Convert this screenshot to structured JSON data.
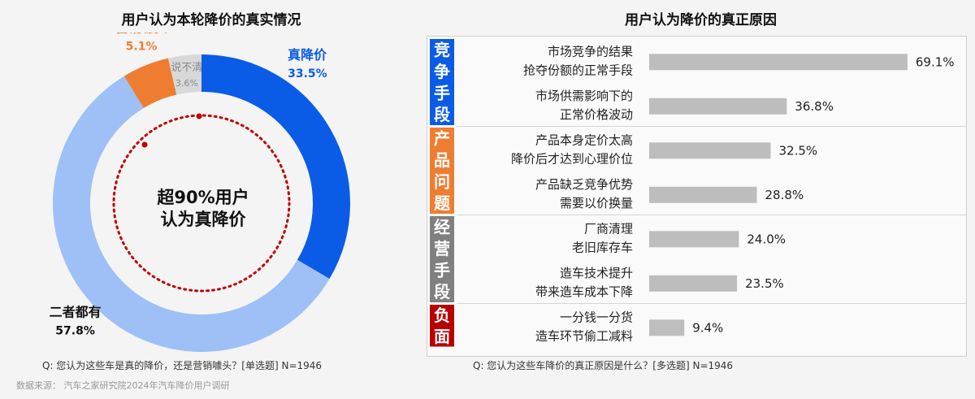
{
  "left_title": "用户认为本轮降价的真实情况",
  "right_title": "用户认为降价的真正原因",
  "center_line1": "超90%用户",
  "center_line2": "认为真降价",
  "left_question": "Q:   您认为这些车是真的降价，还是营销噱头？[单选题]  N=1946",
  "right_question": "Q:   您认为这些车降价的真正原因是什么？[多选题] N=1946",
  "source": "数据来源：  汽车之家研究院2024年汽车降价用户调研",
  "colors": {
    "real_cut": "#0a5ce6",
    "both": "#9ec0f6",
    "marketing": "#ef7d31",
    "unclear": "#d8d8d8",
    "bar": "#bdbdbd",
    "group_blue": "#0a5ce6",
    "group_orange": "#ef7d31",
    "group_gray": "#808080",
    "group_red": "#b80000",
    "ring_dots": "#c00000"
  },
  "chart_data": [
    {
      "type": "pie",
      "title": "用户认为本轮降价的真实情况",
      "slices": [
        {
          "label": "真降价",
          "value": 33.5,
          "value_label": "33.5%",
          "color": "#0a5ce6"
        },
        {
          "label": "二者都有",
          "value": 57.8,
          "value_label": "57.8%",
          "color": "#9ec0f6"
        },
        {
          "label": "营销噱头",
          "value": 5.1,
          "value_label": "5.1%",
          "color": "#ef7d31"
        },
        {
          "label": "说不清",
          "value": 3.6,
          "value_label": "3.6%",
          "color": "#d8d8d8"
        }
      ]
    },
    {
      "type": "bar",
      "orientation": "horizontal",
      "title": "用户认为降价的真正原因",
      "xlim": [
        0,
        75
      ],
      "groups": [
        {
          "label": "竞争手段",
          "color": "#0a5ce6",
          "items": [
            {
              "label_lines": [
                "市场竞争的结果",
                "抢夺份额的正常手段"
              ],
              "value": 69.1,
              "value_label": "69.1%"
            },
            {
              "label_lines": [
                "市场供需影响下的",
                "正常价格波动"
              ],
              "value": 36.8,
              "value_label": "36.8%"
            }
          ]
        },
        {
          "label": "产品问题",
          "color": "#ef7d31",
          "items": [
            {
              "label_lines": [
                "产品本身定价太高",
                "降价后才达到心理价位"
              ],
              "value": 32.5,
              "value_label": "32.5%"
            },
            {
              "label_lines": [
                "产品缺乏竞争优势",
                "需要以价换量"
              ],
              "value": 28.8,
              "value_label": "28.8%"
            }
          ]
        },
        {
          "label": "经营手段",
          "color": "#808080",
          "items": [
            {
              "label_lines": [
                "厂商清理",
                "老旧库存车"
              ],
              "value": 24.0,
              "value_label": "24.0%"
            },
            {
              "label_lines": [
                "造车技术提升",
                "带来造车成本下降"
              ],
              "value": 23.5,
              "value_label": "23.5%"
            }
          ]
        },
        {
          "label": "负面",
          "color": "#b80000",
          "items": [
            {
              "label_lines": [
                "一分钱一分货",
                "造车环节偷工减料"
              ],
              "value": 9.4,
              "value_label": "9.4%"
            }
          ]
        }
      ]
    }
  ]
}
